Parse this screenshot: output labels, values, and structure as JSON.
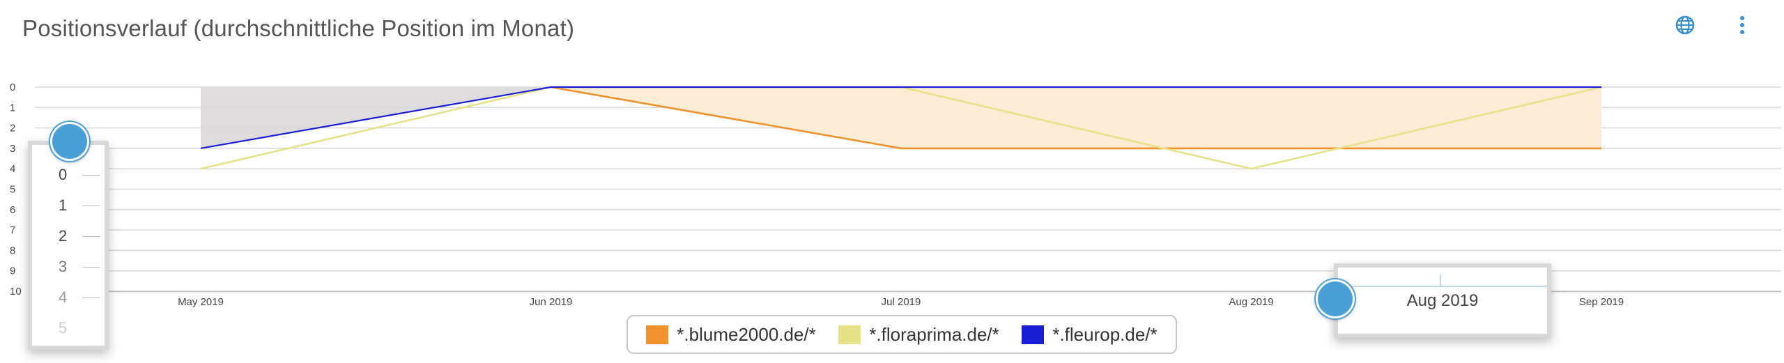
{
  "header": {
    "title": "Positionsverlauf (durchschnittliche Position im Monat)",
    "icons": [
      "globe-icon",
      "more-vertical-icon"
    ]
  },
  "chart_data": {
    "type": "area",
    "categories": [
      "May 2019",
      "Jun 2019",
      "Jul 2019",
      "Aug 2019",
      "Sep 2019"
    ],
    "y_ticks": [
      "0",
      "1",
      "2",
      "3",
      "4",
      "5",
      "6",
      "7",
      "8",
      "9",
      "10"
    ],
    "ylim": [
      0,
      10
    ],
    "y_reversed": true,
    "grid": true,
    "legend_position": "bottom-center",
    "series": [
      {
        "name": "*.blume2000.de/*",
        "color": "#f0922e",
        "values": [
          null,
          0,
          3,
          3,
          3
        ]
      },
      {
        "name": "*.floraprima.de/*",
        "color": "#e6e28a",
        "values": [
          4,
          0,
          0,
          4,
          0
        ]
      },
      {
        "name": "*.fleurop.de/*",
        "color": "#1a1fd6",
        "values": [
          3,
          0,
          0,
          0,
          0
        ]
      }
    ]
  },
  "zoom_callouts": {
    "left": {
      "labels": [
        "0",
        "1",
        "2",
        "3",
        "4",
        "5"
      ]
    },
    "right": {
      "label": "Aug 2019"
    }
  },
  "colors": {
    "grid": "#d8d8d8",
    "area_gray": "#dcd8da",
    "area_orange": "#fbecd6",
    "accent_blue": "#4a9fd6"
  }
}
